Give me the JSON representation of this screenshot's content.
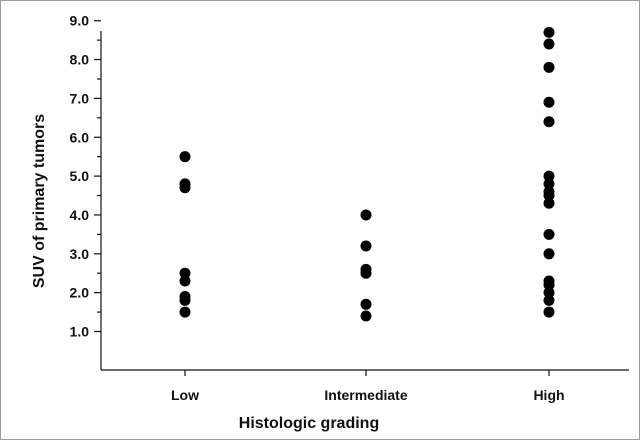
{
  "chart_data": {
    "type": "scatter",
    "title": "",
    "xlabel": "Histologic grading",
    "ylabel": "SUV of primary tumors",
    "categories": [
      "Low",
      "Intermediate",
      "High"
    ],
    "yticks": [
      "1.0",
      "2.0",
      "3.0",
      "4.0",
      "5.0",
      "6.0",
      "7.0",
      "8.0",
      "9.0"
    ],
    "ylim": [
      0.7,
      9.4
    ],
    "grid": false,
    "legend": "none",
    "marker_color": "#000000",
    "series": [
      {
        "category": "Low",
        "values": [
          5.5,
          4.8,
          4.7,
          2.5,
          2.3,
          1.9,
          1.8,
          1.5
        ]
      },
      {
        "category": "Intermediate",
        "values": [
          4.0,
          3.2,
          2.6,
          2.5,
          1.7,
          1.4
        ]
      },
      {
        "category": "High",
        "values": [
          8.7,
          8.4,
          7.8,
          6.9,
          6.4,
          5.0,
          4.8,
          4.6,
          4.5,
          4.3,
          3.5,
          3.0,
          2.3,
          2.2,
          2.0,
          1.8,
          1.5
        ]
      }
    ]
  }
}
